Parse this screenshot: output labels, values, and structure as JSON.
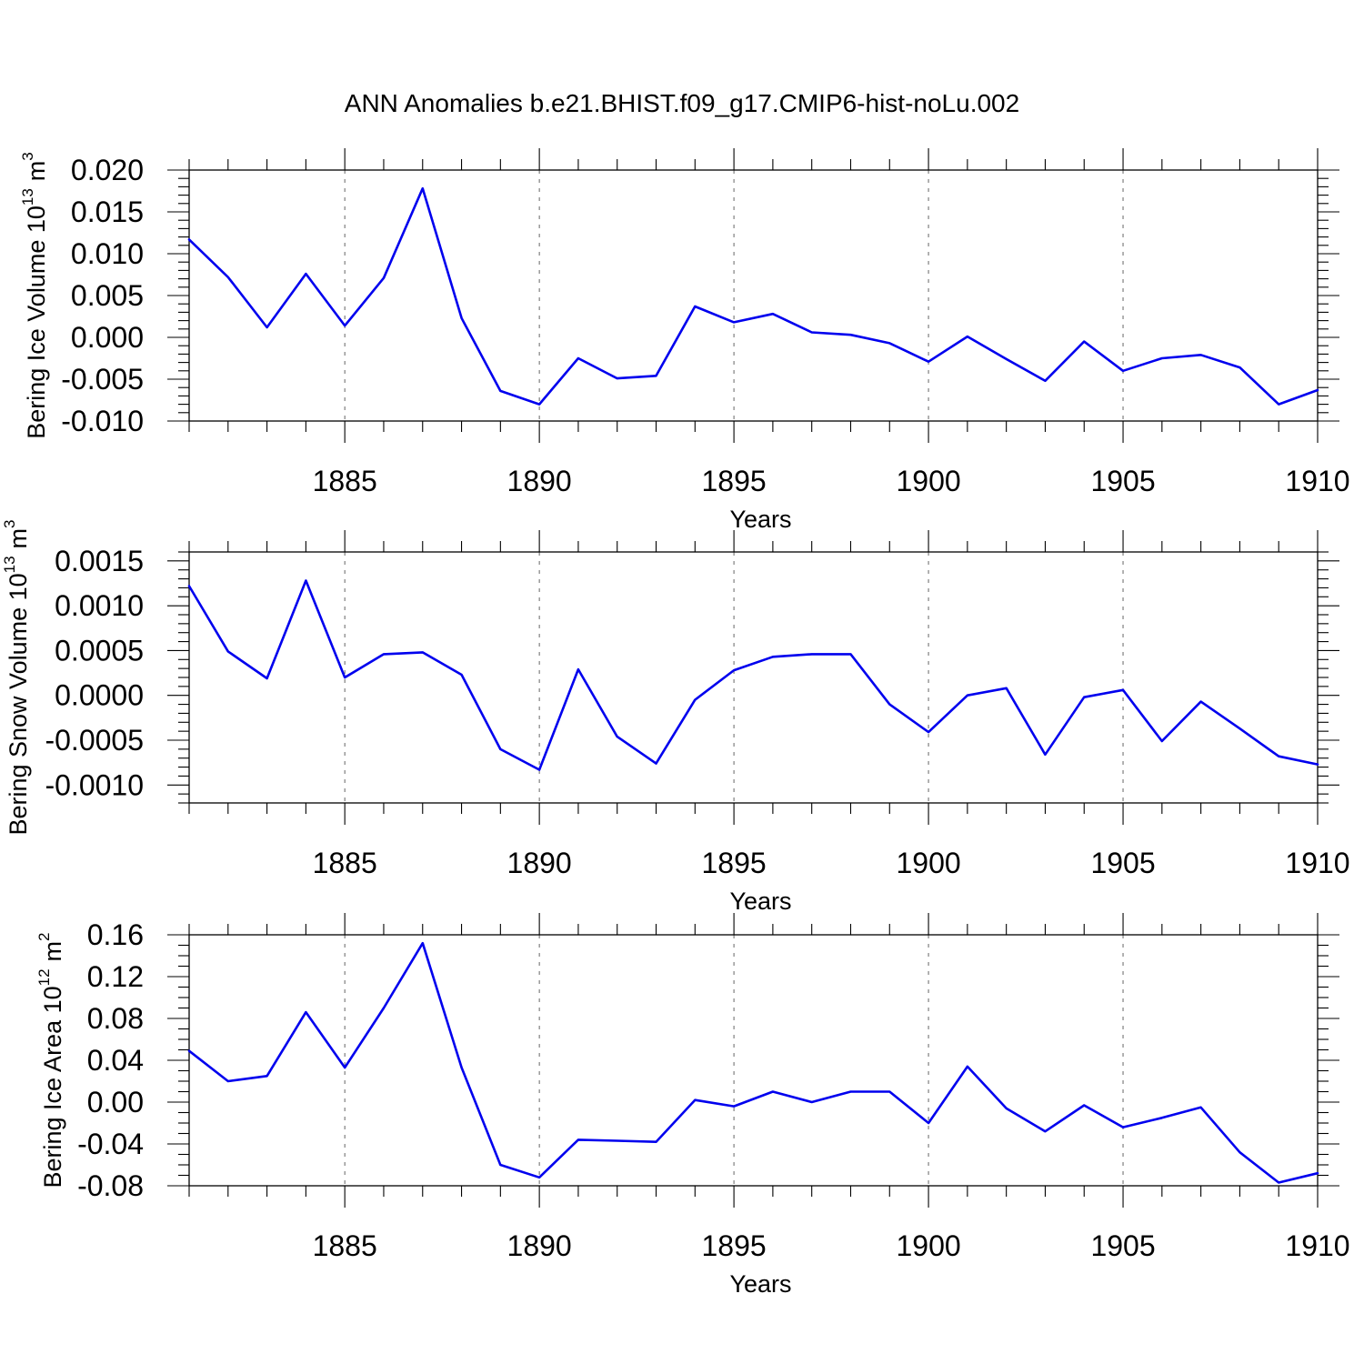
{
  "title": "ANN Anomalies b.e21.BHIST.f09_g17.CMIP6-hist-noLu.002",
  "line_color": "#0000ee",
  "chart_data": [
    {
      "type": "line",
      "ylabel_main": "Bering Ice Volume 10",
      "ylabel_sup": "13",
      "ylabel_unit": "m",
      "ylabel_unit_sup": "3",
      "xlabel": "Years",
      "xlim": [
        1881,
        1910
      ],
      "ylim": [
        -0.01,
        0.02
      ],
      "grid": "dashed vertical lines at major x ticks",
      "x_ticks": [
        1885,
        1890,
        1895,
        1900,
        1905,
        1910
      ],
      "x_tick_labels": [
        "1885",
        "1890",
        "1895",
        "1900",
        "1905",
        "1910"
      ],
      "y_ticks": [
        -0.01,
        -0.005,
        0.0,
        0.005,
        0.01,
        0.015,
        0.02
      ],
      "y_tick_labels": [
        "-0.010",
        "-0.005",
        "0.000",
        "0.005",
        "0.010",
        "0.015",
        "0.020"
      ],
      "y_minor_step": 0.001,
      "x": [
        1881,
        1882,
        1883,
        1884,
        1885,
        1886,
        1887,
        1888,
        1889,
        1890,
        1891,
        1892,
        1893,
        1894,
        1895,
        1896,
        1897,
        1898,
        1899,
        1900,
        1901,
        1902,
        1903,
        1904,
        1905,
        1906,
        1907,
        1908,
        1909,
        1910
      ],
      "values": [
        0.0117,
        0.0072,
        0.0012,
        0.0076,
        0.0014,
        0.0071,
        0.0178,
        0.0023,
        -0.0064,
        -0.008,
        -0.0025,
        -0.0049,
        -0.0046,
        0.0037,
        0.0018,
        0.0028,
        0.0006,
        0.0003,
        -0.0007,
        -0.0029,
        0.0001,
        -0.0026,
        -0.0052,
        -0.0005,
        -0.004,
        -0.0025,
        -0.0021,
        -0.0036,
        -0.008,
        -0.0063
      ]
    },
    {
      "type": "line",
      "ylabel_main": "Bering Snow Volume 10",
      "ylabel_sup": "13",
      "ylabel_unit": "m",
      "ylabel_unit_sup": "3",
      "xlabel": "Years",
      "xlim": [
        1881,
        1910
      ],
      "ylim": [
        -0.0012,
        0.0016
      ],
      "grid": "dashed vertical lines at major x ticks",
      "x_ticks": [
        1885,
        1890,
        1895,
        1900,
        1905,
        1910
      ],
      "x_tick_labels": [
        "1885",
        "1890",
        "1895",
        "1900",
        "1905",
        "1910"
      ],
      "y_ticks": [
        -0.001,
        -0.0005,
        0.0,
        0.0005,
        0.001,
        0.0015
      ],
      "y_tick_labels": [
        "-0.0010",
        "-0.0005",
        "0.0000",
        "0.0005",
        "0.0010",
        "0.0015"
      ],
      "y_minor_step": 0.0001,
      "x": [
        1881,
        1882,
        1883,
        1884,
        1885,
        1886,
        1887,
        1888,
        1889,
        1890,
        1891,
        1892,
        1893,
        1894,
        1895,
        1896,
        1897,
        1898,
        1899,
        1900,
        1901,
        1902,
        1903,
        1904,
        1905,
        1906,
        1907,
        1908,
        1909,
        1910
      ],
      "values": [
        0.00122,
        0.00049,
        0.00019,
        0.00128,
        0.0002,
        0.00046,
        0.00048,
        0.00023,
        -0.0006,
        -0.00083,
        0.00029,
        -0.00046,
        -0.00076,
        -5e-05,
        0.00028,
        0.00043,
        0.00046,
        0.00046,
        -0.0001,
        -0.00041,
        0.0,
        8e-05,
        -0.00066,
        -2e-05,
        6e-05,
        -0.00051,
        -7e-05,
        -0.00037,
        -0.00068,
        -0.00077
      ]
    },
    {
      "type": "line",
      "ylabel_main": "Bering Ice Area 10",
      "ylabel_sup": "12",
      "ylabel_unit": "m",
      "ylabel_unit_sup": "2",
      "xlabel": "Years",
      "xlim": [
        1881,
        1910
      ],
      "ylim": [
        -0.08,
        0.16
      ],
      "grid": "dashed vertical lines at major x ticks",
      "x_ticks": [
        1885,
        1890,
        1895,
        1900,
        1905,
        1910
      ],
      "x_tick_labels": [
        "1885",
        "1890",
        "1895",
        "1900",
        "1905",
        "1910"
      ],
      "y_ticks": [
        -0.08,
        -0.04,
        0.0,
        0.04,
        0.08,
        0.12,
        0.16
      ],
      "y_tick_labels": [
        "-0.08",
        "-0.04",
        "0.00",
        "0.04",
        "0.08",
        "0.12",
        "0.16"
      ],
      "y_minor_step": 0.01,
      "x": [
        1881,
        1882,
        1883,
        1884,
        1885,
        1886,
        1887,
        1888,
        1889,
        1890,
        1891,
        1892,
        1893,
        1894,
        1895,
        1896,
        1897,
        1898,
        1899,
        1900,
        1901,
        1902,
        1903,
        1904,
        1905,
        1906,
        1907,
        1908,
        1909,
        1910
      ],
      "values": [
        0.049,
        0.02,
        0.025,
        0.086,
        0.033,
        0.09,
        0.152,
        0.033,
        -0.06,
        -0.072,
        -0.036,
        -0.037,
        -0.038,
        0.002,
        -0.004,
        0.01,
        0.0,
        0.01,
        0.01,
        -0.02,
        0.034,
        -0.006,
        -0.028,
        -0.003,
        -0.024,
        -0.015,
        -0.005,
        -0.048,
        -0.077,
        -0.068
      ]
    }
  ]
}
